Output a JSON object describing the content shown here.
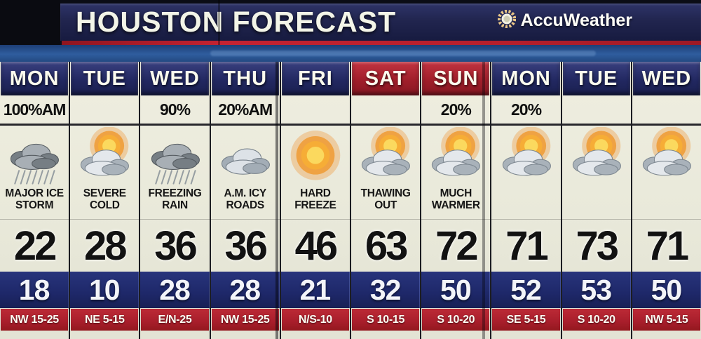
{
  "header": {
    "title": "HOUSTON FORECAST",
    "brand": "AccuWeather"
  },
  "colors": {
    "banner_navy": "#21254f",
    "day_navy": "#222861",
    "day_weekend_red": "#a01e2a",
    "panel_cream": "#e9e9da",
    "low_row_navy": "#1e2869",
    "wind_row_red": "#a81e2b",
    "accent_red_line": "#b51f2c",
    "temp_text": "#121212",
    "white_text": "#fdfdf4"
  },
  "columns": [
    {
      "day": "MON",
      "day_style": "navy",
      "precip": "100%AM",
      "icon": "storm-rain",
      "condition": [
        "MAJOR ICE",
        "STORM"
      ],
      "high": "22",
      "low": "18",
      "wind": "NW 15-25"
    },
    {
      "day": "TUE",
      "day_style": "navy",
      "precip": "",
      "icon": "sun-cloud",
      "condition": [
        "SEVERE",
        "COLD"
      ],
      "high": "28",
      "low": "10",
      "wind": "NE 5-15"
    },
    {
      "day": "WED",
      "day_style": "navy",
      "precip": "90%",
      "icon": "storm-rain",
      "condition": [
        "FREEZING",
        "RAIN"
      ],
      "high": "36",
      "low": "28",
      "wind": "E/N-25"
    },
    {
      "day": "THU",
      "day_style": "navy",
      "precip": "20%AM",
      "icon": "cloudy",
      "condition": [
        "A.M. ICY",
        "ROADS"
      ],
      "high": "36",
      "low": "28",
      "wind": "NW 15-25"
    },
    {
      "day": "FRI",
      "day_style": "navy",
      "precip": "",
      "icon": "sun",
      "condition": [
        "HARD",
        "FREEZE"
      ],
      "high": "46",
      "low": "21",
      "wind": "N/S-10"
    },
    {
      "day": "SAT",
      "day_style": "red",
      "precip": "",
      "icon": "sun-cloud",
      "condition": [
        "THAWING",
        "OUT"
      ],
      "high": "63",
      "low": "32",
      "wind": "S 10-15"
    },
    {
      "day": "SUN",
      "day_style": "red",
      "precip": "20%",
      "icon": "sun-cloud",
      "condition": [
        "MUCH",
        "WARMER"
      ],
      "high": "72",
      "low": "50",
      "wind": "S 10-20"
    },
    {
      "day": "MON",
      "day_style": "navy",
      "precip": "20%",
      "icon": "sun-cloud",
      "condition": [],
      "high": "71",
      "low": "52",
      "wind": "SE 5-15"
    },
    {
      "day": "TUE",
      "day_style": "navy",
      "precip": "",
      "icon": "sun-cloud",
      "condition": [],
      "high": "73",
      "low": "53",
      "wind": "S 10-20"
    },
    {
      "day": "WED",
      "day_style": "navy",
      "precip": "",
      "icon": "sun-cloud",
      "condition": [],
      "high": "71",
      "low": "50",
      "wind": "NW 5-15"
    }
  ]
}
